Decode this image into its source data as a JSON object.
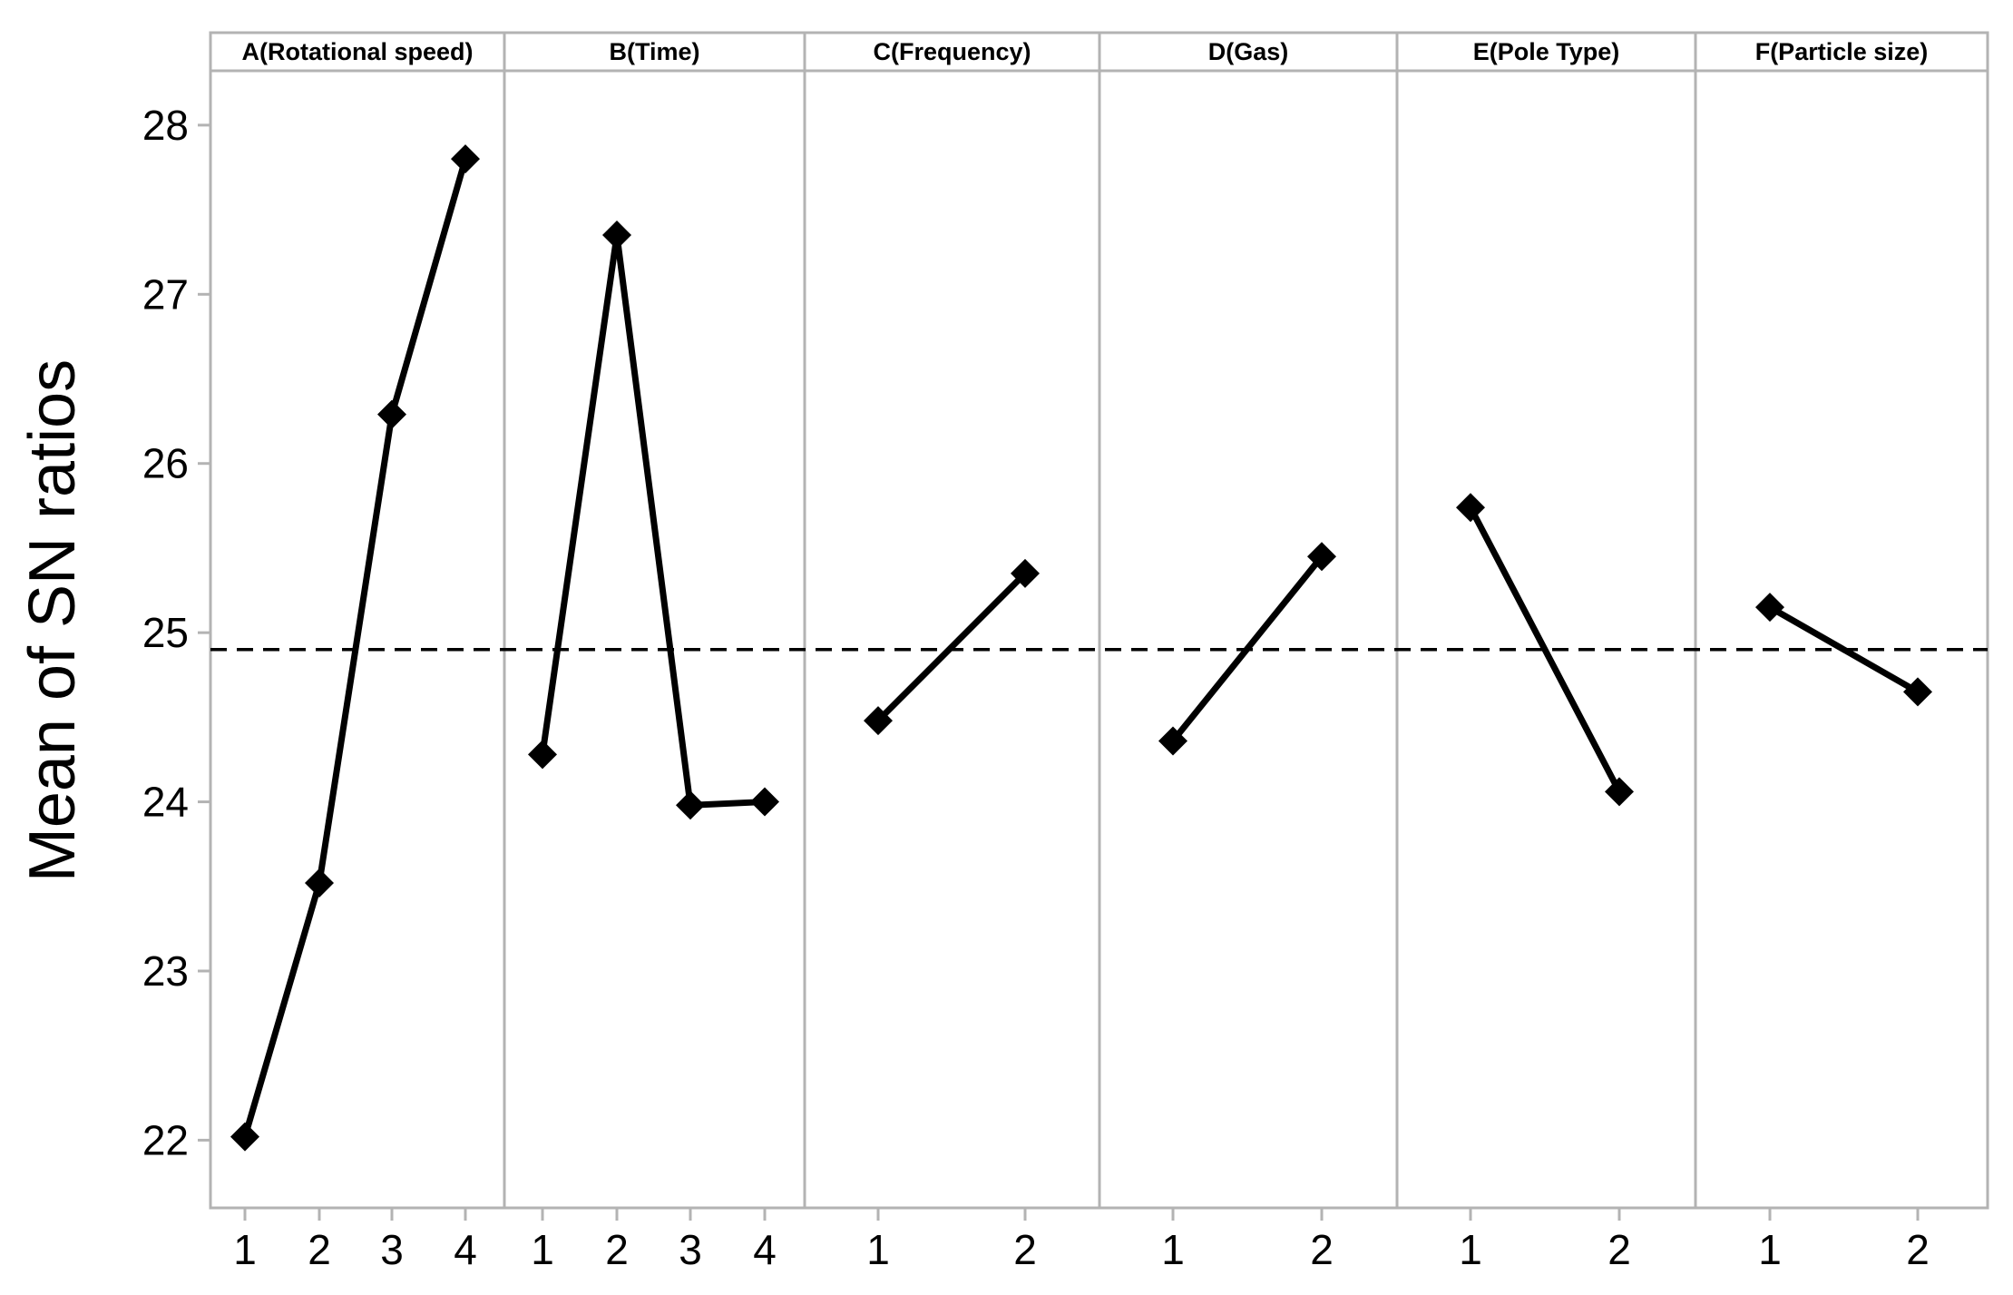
{
  "chart_data": {
    "type": "line",
    "ylabel": "Mean of SN ratios",
    "ylim": [
      21.75,
      28.45
    ],
    "yticks": [
      22,
      23,
      24,
      25,
      26,
      27,
      28
    ],
    "reference_line": {
      "value": 24.9,
      "style": "dashed"
    },
    "grid": false,
    "colors": {
      "line": "#000000",
      "frame": "#b3b3b3",
      "background": "#ffffff"
    },
    "panels": [
      {
        "title": "A(Rotational speed)",
        "levels": [
          "1",
          "2",
          "3",
          "4"
        ],
        "values": [
          22.02,
          23.52,
          26.29,
          27.8
        ]
      },
      {
        "title": "B(Time)",
        "levels": [
          "1",
          "2",
          "3",
          "4"
        ],
        "values": [
          24.28,
          27.35,
          23.98,
          24.0
        ]
      },
      {
        "title": "C(Frequency)",
        "levels": [
          "1",
          "2"
        ],
        "values": [
          24.48,
          25.35
        ]
      },
      {
        "title": "D(Gas)",
        "levels": [
          "1",
          "2"
        ],
        "values": [
          24.36,
          25.45
        ]
      },
      {
        "title": "E(Pole Type)",
        "levels": [
          "1",
          "2"
        ],
        "values": [
          25.74,
          24.06
        ]
      },
      {
        "title": "F(Particle size)",
        "levels": [
          "1",
          "2"
        ],
        "values": [
          25.15,
          24.65
        ]
      }
    ]
  }
}
